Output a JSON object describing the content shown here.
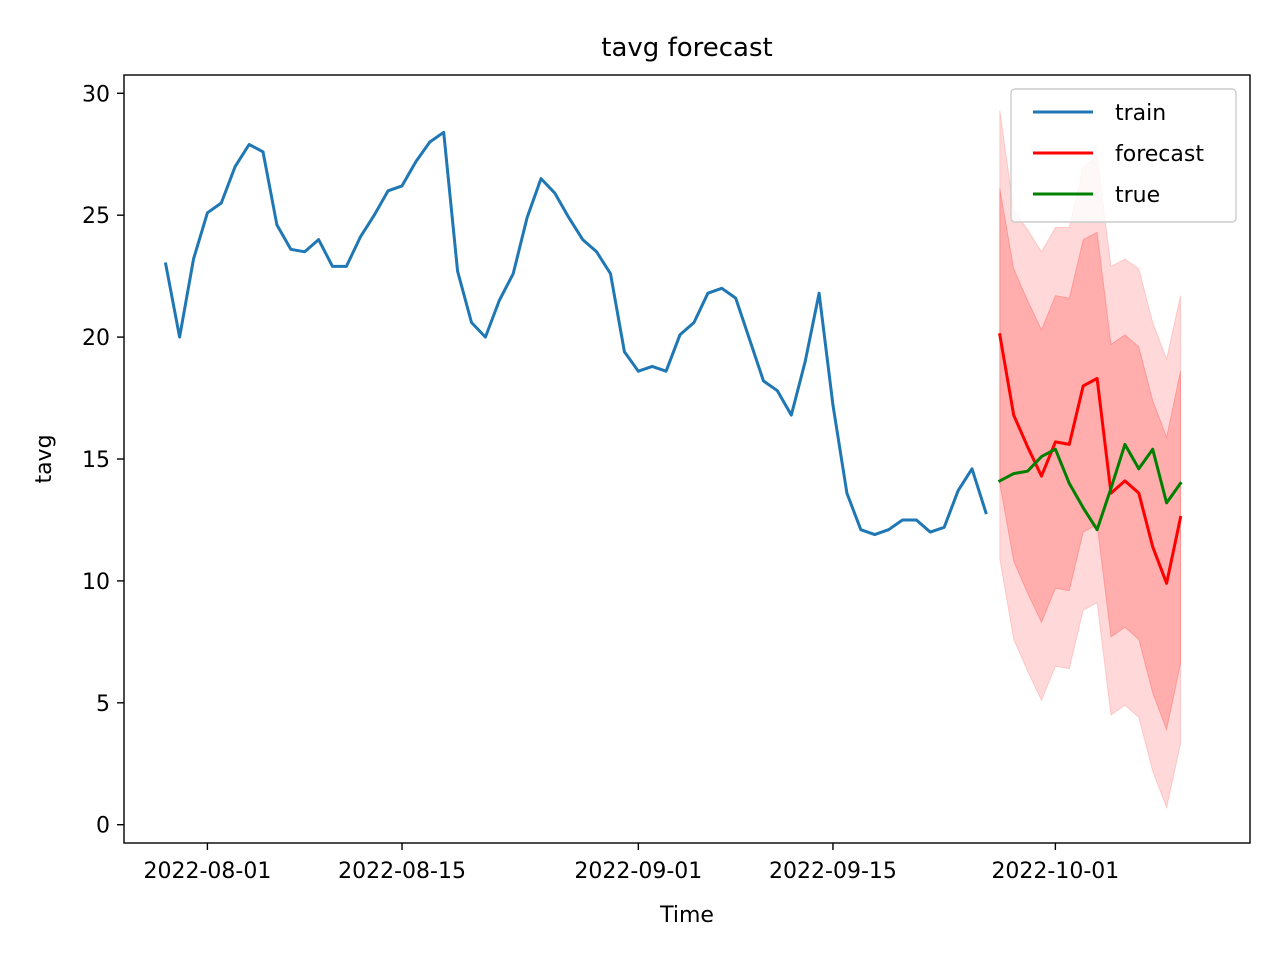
{
  "chart_data": {
    "type": "line",
    "title": "tavg forecast",
    "xlabel": "Time",
    "ylabel": "tavg",
    "x_tick_labels": [
      "2022-08-01",
      "2022-08-15",
      "2022-09-01",
      "2022-09-15",
      "2022-10-01"
    ],
    "x_tick_dates": [
      "2022-08-01",
      "2022-08-15",
      "2022-09-01",
      "2022-09-15",
      "2022-10-01"
    ],
    "y_tick_labels": [
      "0",
      "5",
      "10",
      "15",
      "20",
      "25",
      "30"
    ],
    "y_ticks": [
      0,
      5,
      10,
      15,
      20,
      25,
      30
    ],
    "xlim": [
      "2022-07-26",
      "2022-10-15"
    ],
    "ylim": [
      -0.75,
      30.75
    ],
    "legend_position": "top-right",
    "grid": false,
    "colors": {
      "train": "#1f77b4",
      "forecast": "#ff0000",
      "true": "#008000",
      "band": "#ff0000"
    },
    "series": [
      {
        "name": "train",
        "start_date": "2022-07-29",
        "values": [
          23.0,
          20.0,
          23.2,
          25.1,
          25.5,
          27.0,
          27.9,
          27.6,
          24.6,
          23.6,
          23.5,
          24.0,
          22.9,
          22.9,
          24.1,
          25.0,
          26.0,
          26.2,
          27.2,
          28.0,
          28.4,
          22.7,
          20.6,
          20.0,
          21.5,
          22.6,
          24.9,
          26.5,
          25.9,
          24.9,
          24.0,
          23.5,
          22.6,
          19.4,
          18.6,
          18.8,
          18.6,
          20.1,
          20.6,
          21.8,
          22.0,
          21.6,
          19.9,
          18.2,
          17.8,
          16.8,
          19.0,
          21.8,
          17.2,
          13.6,
          12.1,
          11.9,
          12.1,
          12.5,
          12.5,
          12.0,
          12.2,
          13.7,
          14.6,
          12.8
        ]
      },
      {
        "name": "forecast",
        "start_date": "2022-09-27",
        "values": [
          20.1,
          16.8,
          15.5,
          14.3,
          15.7,
          15.6,
          18.0,
          18.3,
          13.6,
          14.1,
          13.6,
          11.4,
          9.9,
          12.6
        ]
      },
      {
        "name": "true",
        "start_date": "2022-09-27",
        "values": [
          14.1,
          14.4,
          14.5,
          15.1,
          15.4,
          14.0,
          13.0,
          12.1,
          13.8,
          15.6,
          14.6,
          15.4,
          13.2,
          14.0
        ]
      }
    ],
    "bands": {
      "start_date": "2022-09-27",
      "outer_upper": [
        29.3,
        25.2,
        24.4,
        23.5,
        24.5,
        24.5,
        27.0,
        27.4,
        22.9,
        23.2,
        22.8,
        20.6,
        19.1,
        21.7
      ],
      "inner_upper": [
        26.1,
        22.8,
        21.5,
        20.3,
        21.7,
        21.6,
        24.0,
        24.3,
        19.7,
        20.1,
        19.6,
        17.4,
        15.9,
        18.6
      ],
      "inner_lower": [
        14.0,
        10.8,
        9.5,
        8.3,
        9.7,
        9.6,
        12.0,
        12.3,
        7.7,
        8.1,
        7.6,
        5.4,
        3.9,
        6.6
      ],
      "outer_lower": [
        10.9,
        7.6,
        6.3,
        5.1,
        6.5,
        6.4,
        8.8,
        9.1,
        4.5,
        4.9,
        4.4,
        2.2,
        0.7,
        3.3
      ]
    }
  }
}
